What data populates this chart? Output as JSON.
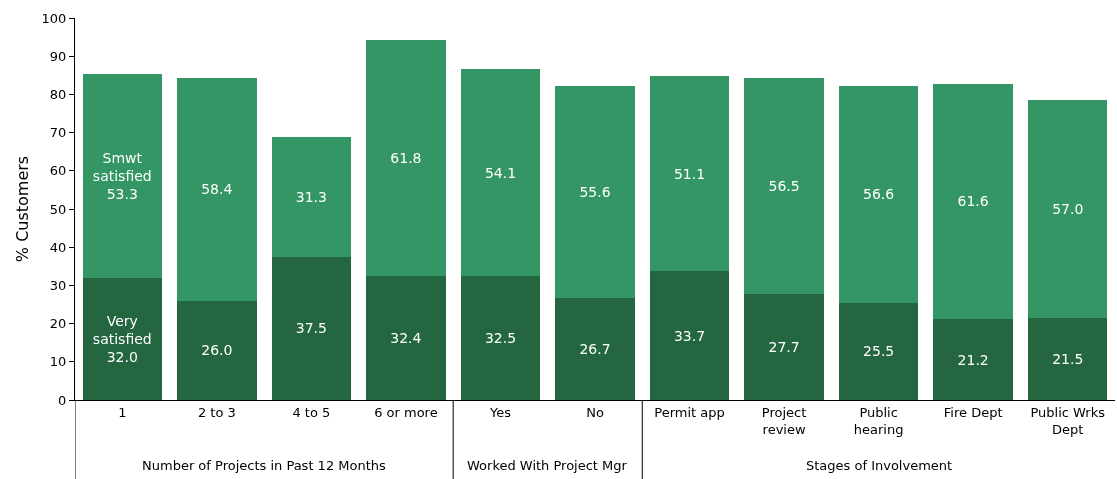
{
  "chart_data": {
    "type": "bar",
    "stacked": true,
    "ylabel": "% Customers",
    "categories": [
      "1",
      "2 to 3",
      "4 to 5",
      "6 or more",
      "Yes",
      "No",
      "Permit app",
      "Project review",
      "Public hearing",
      "Fire Dept",
      "Public Wrks Dept"
    ],
    "series": [
      {
        "name": "Very satisfied",
        "color": "#236640",
        "values": [
          32.0,
          26.0,
          37.5,
          32.4,
          32.5,
          26.7,
          33.7,
          27.7,
          25.5,
          21.2,
          21.5
        ],
        "value_labels": [
          "32.0",
          "26.0",
          "37.5",
          "32.4",
          "32.5",
          "26.7",
          "33.7",
          "27.7",
          "25.5",
          "21.2",
          "21.5"
        ]
      },
      {
        "name": "Smwt satisfied",
        "color": "#339664",
        "values": [
          53.3,
          58.4,
          31.3,
          61.8,
          54.1,
          55.6,
          51.1,
          56.5,
          56.6,
          61.6,
          57.0
        ],
        "value_labels": [
          "53.3",
          "58.4",
          "31.3",
          "61.8",
          "54.1",
          "55.6",
          "51.1",
          "56.5",
          "56.6",
          "61.6",
          "57.0"
        ]
      }
    ],
    "ylim": [
      0,
      100
    ],
    "yticks": [
      0,
      10,
      20,
      30,
      40,
      50,
      60,
      70,
      80,
      90,
      100
    ],
    "grid": false,
    "legend": false,
    "annotations": [
      "Number of Projects in Past 12 Months",
      "Worked With Project Mgr",
      "Stages of Involvement"
    ]
  }
}
